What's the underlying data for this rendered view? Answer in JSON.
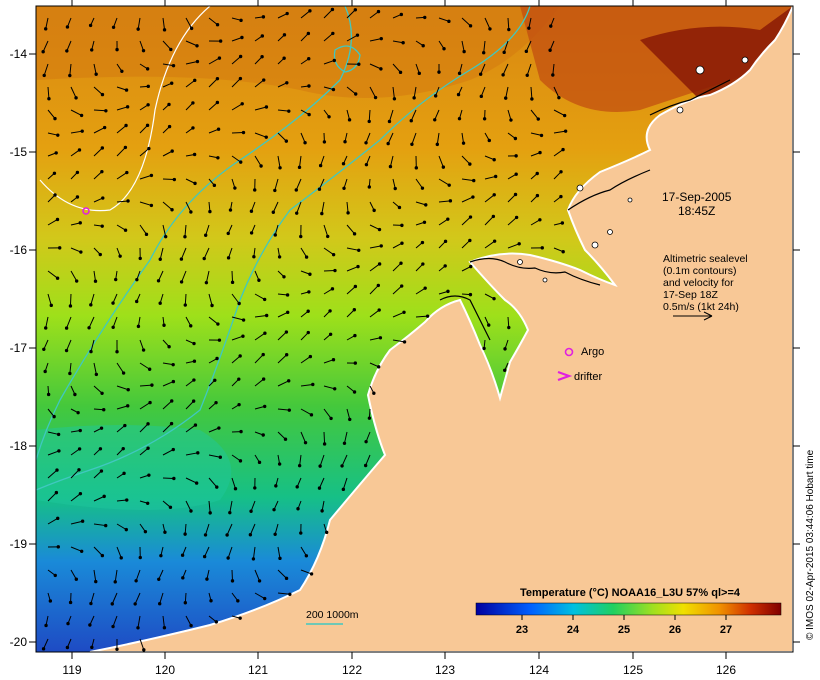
{
  "datetime": {
    "date": "17-Sep-2005",
    "time": "18:45Z"
  },
  "altimetry_note": [
    "Altimetric sealevel",
    "(0.1m contours)",
    "and velocity for",
    "17-Sep 18Z",
    "0.5m/s (1kt 24h)"
  ],
  "legend": {
    "argo": "Argo",
    "drifter": "drifter",
    "isobaths": "200  1000m"
  },
  "colorbar": {
    "title": "Temperature (°C) NOAA16_L3U 57% ql>=4",
    "ticks": [
      "23",
      "24",
      "25",
      "26",
      "27"
    ]
  },
  "axes": {
    "lon_ticks": [
      "119",
      "120",
      "121",
      "122",
      "123",
      "124",
      "125",
      "126"
    ],
    "lat_ticks": [
      "-14",
      "-15",
      "-16",
      "-17",
      "-18",
      "-19",
      "-20"
    ]
  },
  "copyright": "© IMOS 02-Apr-2015 03:44:06 Hobart time",
  "colors": {
    "land": "#f8c896",
    "isobath": "#40c8c0",
    "sla_contour": "#ffffff",
    "argo_marker": "#e020e0",
    "drifter_marker": "#e020e0"
  }
}
